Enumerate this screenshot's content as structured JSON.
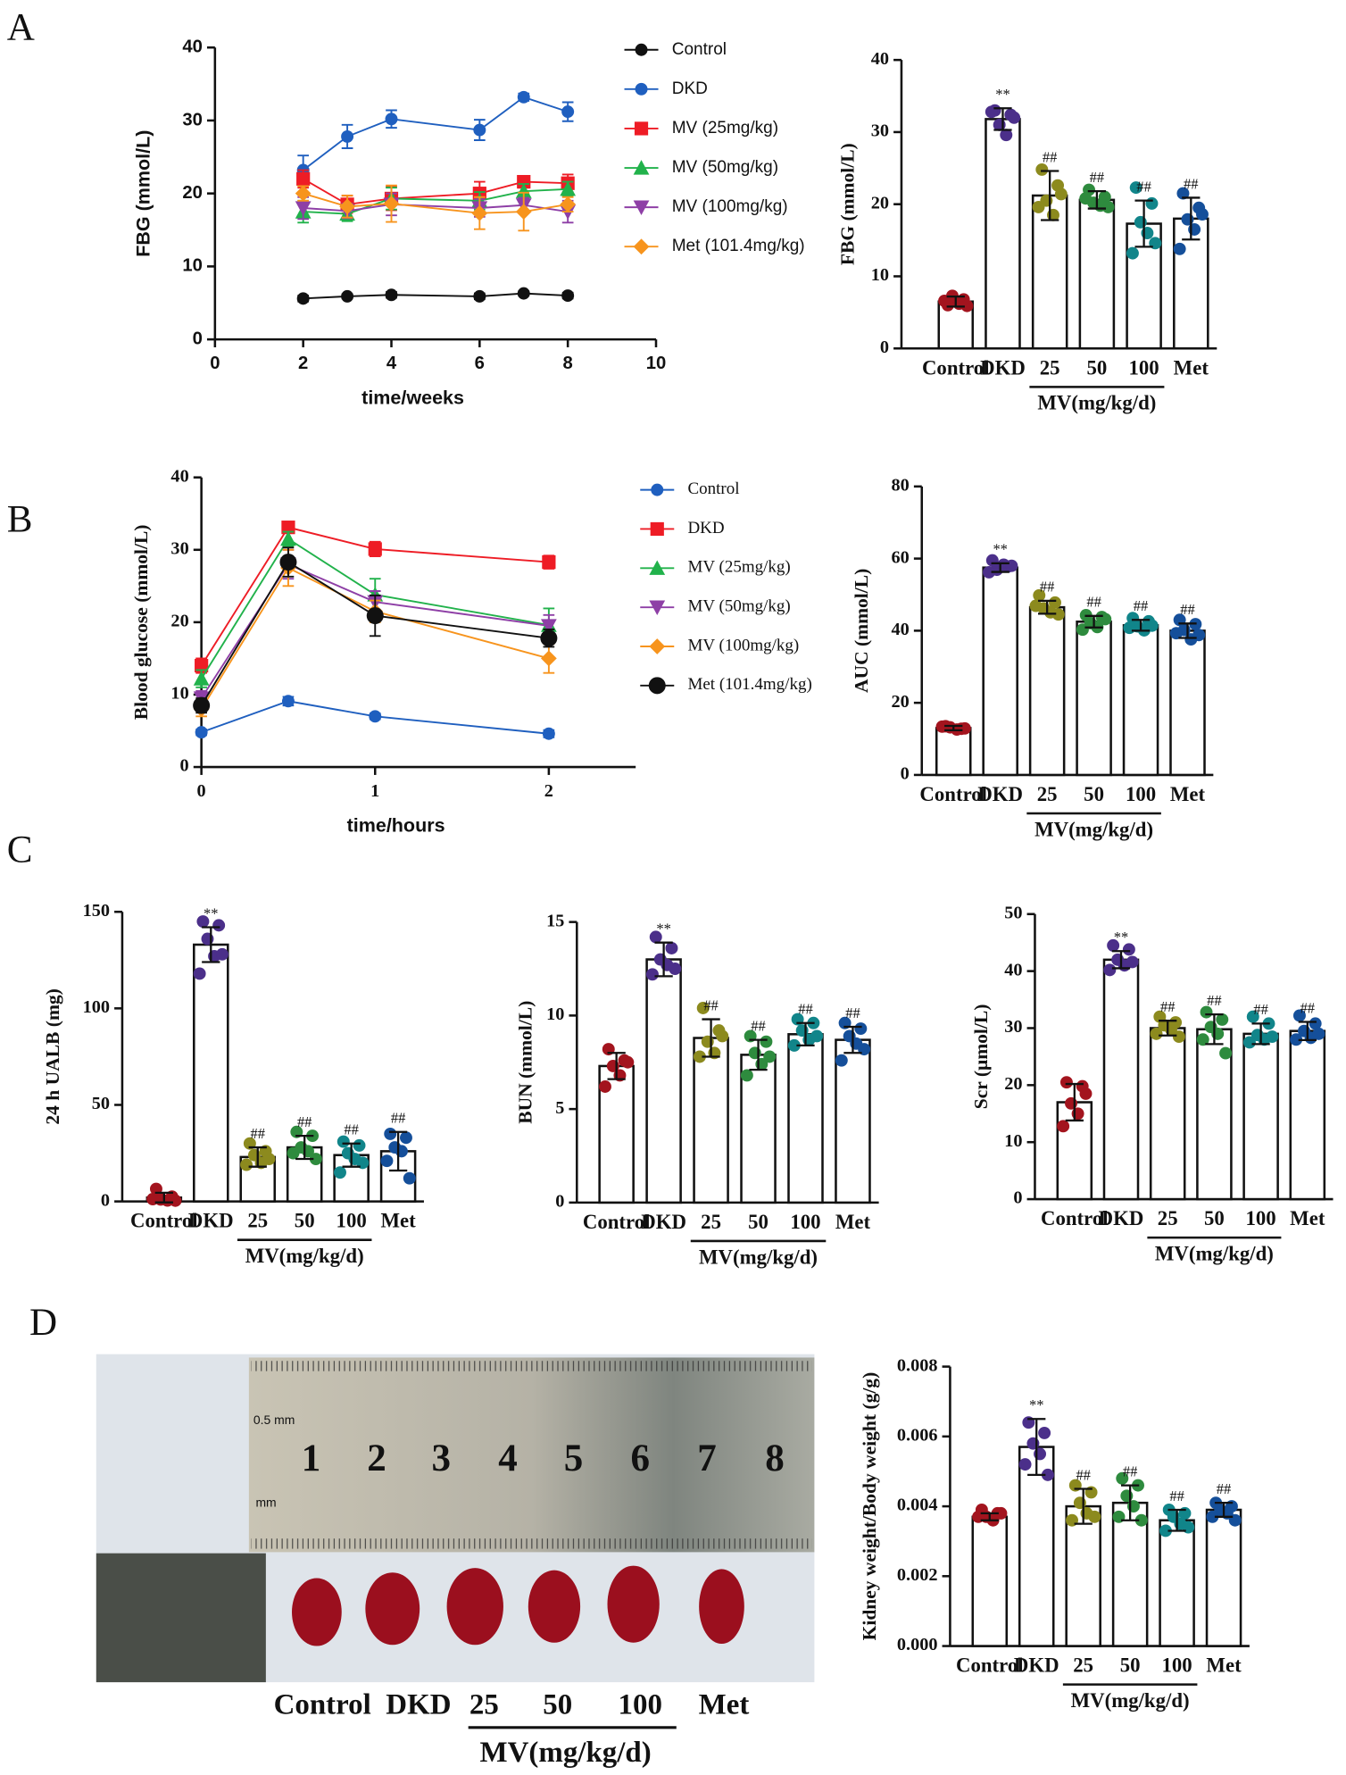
{
  "panel_labels": [
    "A",
    "B",
    "C",
    "D"
  ],
  "chart_data": [
    {
      "type": "line",
      "xlabel": "time/weeks",
      "ylabel": "FBG (mmol/L)",
      "x": [
        2,
        3,
        4,
        6,
        7,
        8
      ],
      "xlim": [
        0,
        10
      ],
      "xticks": [
        0,
        2,
        4,
        6,
        8,
        10
      ],
      "ylim": [
        0,
        40
      ],
      "yticks": [
        0,
        10,
        20,
        30,
        40
      ],
      "series": [
        {
          "name": "Control",
          "color": "#111111",
          "marker": "circle",
          "values": [
            5.6,
            5.9,
            6.1,
            5.9,
            6.3,
            6.0
          ],
          "errors": [
            0.4,
            0.3,
            0.4,
            0.4,
            0.3,
            0.4
          ]
        },
        {
          "name": "DKD",
          "color": "#1f5fbf",
          "marker": "circle",
          "values": [
            23.2,
            27.8,
            30.2,
            28.7,
            33.2,
            31.2
          ],
          "errors": [
            2.0,
            1.6,
            1.2,
            1.4,
            0.5,
            1.3
          ]
        },
        {
          "name": "MV (25mg/kg)",
          "color": "#ee1c25",
          "marker": "square",
          "values": [
            22,
            18.5,
            19.3,
            20,
            21.6,
            21.4
          ],
          "errors": [
            1.2,
            1.2,
            1.6,
            1.6,
            0.8,
            1.2
          ]
        },
        {
          "name": "MV (50mg/kg)",
          "color": "#21b24b",
          "marker": "triangle-up",
          "values": [
            17.5,
            17.2,
            19.3,
            19,
            20.3,
            20.6
          ],
          "errors": [
            1.5,
            1.0,
            1.5,
            1.2,
            1.0,
            1.0
          ]
        },
        {
          "name": "MV (100mg/kg)",
          "color": "#8e3fa6",
          "marker": "triangle-down",
          "values": [
            18,
            17.6,
            18.5,
            18,
            18.4,
            17.5
          ],
          "errors": [
            1.5,
            1.0,
            1.5,
            1.2,
            1.0,
            1.5
          ]
        },
        {
          "name": "Met (101.4mg/kg)",
          "color": "#f7941d",
          "marker": "diamond",
          "values": [
            20,
            18.2,
            18.6,
            17.3,
            17.5,
            18.5
          ],
          "errors": [
            1.0,
            1.5,
            2.5,
            2.2,
            2.6,
            1.0
          ]
        }
      ]
    },
    {
      "type": "bar",
      "ylabel": "FBG (mmol/L)",
      "categories": [
        "Control",
        "DKD",
        "25",
        "50",
        "100",
        "Met"
      ],
      "group_label": "MV(mg/kg/d)",
      "ylim": [
        0,
        40
      ],
      "yticks": [
        0,
        10,
        20,
        30,
        40
      ],
      "values": [
        6.5,
        31.8,
        21.2,
        20.6,
        17.3,
        18.0
      ],
      "errors": [
        0.7,
        1.5,
        3.4,
        1.2,
        3.2,
        2.9
      ],
      "annotations": [
        null,
        "**",
        "##",
        "##",
        "##",
        "##"
      ],
      "colors": [
        "#a3141e",
        "#4b2f8a",
        "#8c8a1e",
        "#2e8b3e",
        "#11858a",
        "#154f9a"
      ],
      "points": [
        [
          6.0,
          6.8,
          7.3,
          6.2,
          6.6,
          5.9
        ],
        [
          33.0,
          32.4,
          31.0,
          29.6,
          32.8,
          32.0
        ],
        [
          24.8,
          22.6,
          20.5,
          18.5,
          19.6,
          21.4
        ],
        [
          22.0,
          21.0,
          20.2,
          19.8,
          20.8,
          19.6
        ],
        [
          22.3,
          20.1,
          17.5,
          16.0,
          13.2,
          14.6
        ],
        [
          21.5,
          19.5,
          17.9,
          16.5,
          13.8,
          18.6
        ]
      ]
    },
    {
      "type": "line",
      "xlabel": "time/hours",
      "ylabel": "Blood glucose (mmol/L)",
      "x": [
        0,
        0.5,
        1,
        2
      ],
      "xlim": [
        0,
        2.5
      ],
      "xticks": [
        0,
        1,
        2
      ],
      "ylim": [
        0,
        40
      ],
      "yticks": [
        0,
        10,
        20,
        30,
        40
      ],
      "series": [
        {
          "name": "Control",
          "color": "#1f5fbf",
          "marker": "circle",
          "values": [
            4.8,
            9.1,
            7.0,
            4.6
          ],
          "errors": [
            0.4,
            0.6,
            0.4,
            0.5
          ]
        },
        {
          "name": "DKD",
          "color": "#ee1c25",
          "marker": "square",
          "values": [
            14,
            33.1,
            30.1,
            28.3
          ],
          "errors": [
            1.0,
            0.5,
            1.0,
            0.9
          ]
        },
        {
          "name": "MV (25mg/kg)",
          "color": "#21b24b",
          "marker": "triangle-up",
          "values": [
            12.2,
            31.5,
            23.8,
            19.6
          ],
          "errors": [
            1.2,
            1.0,
            2.2,
            2.3
          ]
        },
        {
          "name": "MV (50mg/kg)",
          "color": "#8e3fa6",
          "marker": "triangle-down",
          "values": [
            9.5,
            28,
            22.8,
            19.5
          ],
          "errors": [
            1.0,
            2.0,
            1.5,
            1.5
          ]
        },
        {
          "name": "MV (100mg/kg)",
          "color": "#f7941d",
          "marker": "diamond",
          "values": [
            8,
            27.5,
            21.5,
            15
          ],
          "errors": [
            1.0,
            2.5,
            1.5,
            2.0
          ]
        },
        {
          "name": "Met (101.4mg/kg)",
          "color": "#111111",
          "marker": "big-circle",
          "values": [
            8.5,
            28.3,
            20.9,
            17.8
          ],
          "errors": [
            1.0,
            2.0,
            2.8,
            1.2
          ]
        }
      ]
    },
    {
      "type": "bar",
      "ylabel": "AUC (mmol/L)",
      "categories": [
        "Control",
        "DKD",
        "25",
        "50",
        "100",
        "Met"
      ],
      "group_label": "MV(mg/kg/d)",
      "ylim": [
        0,
        80
      ],
      "yticks": [
        0,
        20,
        40,
        60,
        80
      ],
      "values": [
        13,
        57.5,
        46.5,
        42.5,
        41.5,
        40
      ],
      "errors": [
        0.6,
        1.2,
        1.8,
        1.6,
        1.5,
        2.0
      ],
      "annotations": [
        null,
        "**",
        "##",
        "##",
        "##",
        "##"
      ],
      "colors": [
        "#a3141e",
        "#4b2f8a",
        "#8c8a1e",
        "#2e8b3e",
        "#11858a",
        "#154f9a"
      ],
      "points": [
        [
          13.5,
          12.8,
          13.2,
          12.6,
          13.4,
          12.9
        ],
        [
          59.5,
          57.8,
          56.9,
          58.3,
          56.2,
          58.0
        ],
        [
          49.8,
          47.8,
          46.2,
          45.1,
          46.9,
          44.5
        ],
        [
          44.3,
          43.8,
          42.1,
          41.0,
          40.3,
          43.2
        ],
        [
          43.5,
          42.6,
          41.2,
          40.1,
          40.8,
          41.4
        ],
        [
          43.0,
          41.8,
          40.2,
          37.6,
          39.3,
          38.8
        ]
      ]
    },
    {
      "type": "bar",
      "ylabel": "24 h UALB (mg)",
      "categories": [
        "Control",
        "DKD",
        "25",
        "50",
        "100",
        "Met"
      ],
      "group_label": "MV(mg/kg/d)",
      "ylim": [
        0,
        150
      ],
      "yticks": [
        0,
        50,
        100,
        150
      ],
      "values": [
        2,
        133,
        23,
        28,
        24,
        26
      ],
      "errors": [
        2.5,
        9,
        5,
        6,
        6,
        10
      ],
      "annotations": [
        null,
        "**",
        "##",
        "##",
        "##",
        "##"
      ],
      "colors": [
        "#a3141e",
        "#4b2f8a",
        "#8c8a1e",
        "#2e8b3e",
        "#11858a",
        "#154f9a"
      ],
      "points": [
        [
          6.5,
          2.5,
          1.0,
          0.5,
          1.2,
          0.4
        ],
        [
          145,
          143,
          136,
          127,
          118,
          128
        ],
        [
          30,
          26,
          24,
          20,
          19,
          22
        ],
        [
          36,
          34,
          28,
          26,
          25,
          22
        ],
        [
          31,
          29,
          25,
          22,
          15,
          20
        ],
        [
          35,
          33,
          28,
          26,
          21,
          12
        ]
      ]
    },
    {
      "type": "bar",
      "ylabel": "BUN (mmol/L)",
      "categories": [
        "Control",
        "DKD",
        "25",
        "50",
        "100",
        "Met"
      ],
      "group_label": "MV(mg/kg/d)",
      "ylim": [
        0,
        15
      ],
      "yticks": [
        0,
        5,
        10,
        15
      ],
      "values": [
        7.3,
        13,
        8.8,
        7.9,
        9.0,
        8.7
      ],
      "errors": [
        0.7,
        0.9,
        1.0,
        0.8,
        0.6,
        0.7
      ],
      "annotations": [
        null,
        "**",
        "##",
        "##",
        "##",
        "##"
      ],
      "colors": [
        "#a3141e",
        "#4b2f8a",
        "#8c8a1e",
        "#2e8b3e",
        "#11858a",
        "#154f9a"
      ],
      "points": [
        [
          8.2,
          7.6,
          7.3,
          6.8,
          6.2,
          7.5
        ],
        [
          14.2,
          13.6,
          13.0,
          12.7,
          12.2,
          12.5
        ],
        [
          10.4,
          9.2,
          8.6,
          8.0,
          7.8,
          8.9
        ],
        [
          8.9,
          8.6,
          8.0,
          7.4,
          6.8,
          7.8
        ],
        [
          9.8,
          9.6,
          9.2,
          8.7,
          8.4,
          8.9
        ],
        [
          9.6,
          9.3,
          8.9,
          8.5,
          7.6,
          8.2
        ]
      ]
    },
    {
      "type": "bar",
      "ylabel": "Scr (μmol/L)",
      "categories": [
        "Control",
        "DKD",
        "25",
        "50",
        "100",
        "Met"
      ],
      "group_label": "MV(mg/kg/d)",
      "ylim": [
        0,
        50
      ],
      "yticks": [
        0,
        10,
        20,
        30,
        40,
        50
      ],
      "values": [
        17,
        42,
        30,
        29.8,
        29,
        29.5
      ],
      "errors": [
        3.2,
        1.5,
        1.3,
        2.6,
        1.8,
        1.6
      ],
      "annotations": [
        null,
        "**",
        "##",
        "##",
        "##",
        "##"
      ],
      "colors": [
        "#a3141e",
        "#4b2f8a",
        "#8c8a1e",
        "#2e8b3e",
        "#11858a",
        "#154f9a"
      ],
      "points": [
        [
          20.5,
          19.8,
          16.8,
          15.0,
          12.8,
          18.5
        ],
        [
          44.5,
          43.8,
          42.0,
          41.0,
          40.2,
          41.6
        ],
        [
          32.0,
          31.0,
          30.5,
          29.8,
          29.0,
          28.5
        ],
        [
          32.8,
          31.5,
          30.2,
          29.0,
          28.0,
          25.6
        ],
        [
          32.0,
          30.8,
          28.8,
          28.0,
          27.5,
          28.5
        ],
        [
          32.2,
          30.8,
          29.5,
          28.3,
          28.0,
          29.0
        ]
      ]
    },
    {
      "type": "bar",
      "ylabel": "Kidney weight/Body weight (g/g)",
      "categories": [
        "Control",
        "DKD",
        "25",
        "50",
        "100",
        "Met"
      ],
      "group_label": "MV(mg/kg/d)",
      "ylim": [
        0,
        0.008
      ],
      "yticks": [
        {
          "value": 0,
          "label": "0.000"
        },
        {
          "value": 0.002,
          "label": "0.002"
        },
        {
          "value": 0.004,
          "label": "0.004"
        },
        {
          "value": 0.006,
          "label": "0.006"
        },
        {
          "value": 0.008,
          "label": "0.008"
        }
      ],
      "values": [
        0.0037,
        0.0057,
        0.004,
        0.0041,
        0.0036,
        0.0039
      ],
      "errors": [
        0.0001,
        0.0008,
        0.0005,
        0.0005,
        0.0003,
        0.0002
      ],
      "annotations": [
        null,
        "**",
        "##",
        "##",
        "##",
        "##"
      ],
      "colors": [
        "#a3141e",
        "#4b2f8a",
        "#8c8a1e",
        "#2e8b3e",
        "#11858a",
        "#154f9a"
      ],
      "points": [
        [
          0.0039,
          0.0038,
          0.0037,
          0.0036,
          0.0037,
          0.0038
        ],
        [
          0.0064,
          0.0061,
          0.0058,
          0.0055,
          0.0052,
          0.0049
        ],
        [
          0.0046,
          0.0044,
          0.0041,
          0.0038,
          0.0036,
          0.0037
        ],
        [
          0.0048,
          0.0046,
          0.0043,
          0.004,
          0.0037,
          0.0036
        ],
        [
          0.0039,
          0.0038,
          0.0037,
          0.0035,
          0.0033,
          0.0034
        ],
        [
          0.0041,
          0.004,
          0.0039,
          0.0038,
          0.0037,
          0.0036
        ]
      ]
    }
  ],
  "photo": {
    "ruler_numbers": [
      "1",
      "2",
      "3",
      "4",
      "5",
      "6",
      "7",
      "8"
    ],
    "ruler_top": "0.5 mm",
    "ruler_bottom": "mm",
    "groups": [
      "Control",
      "DKD",
      "25",
      "50",
      "100",
      "Met"
    ],
    "group_label": "MV(mg/kg/d)"
  }
}
